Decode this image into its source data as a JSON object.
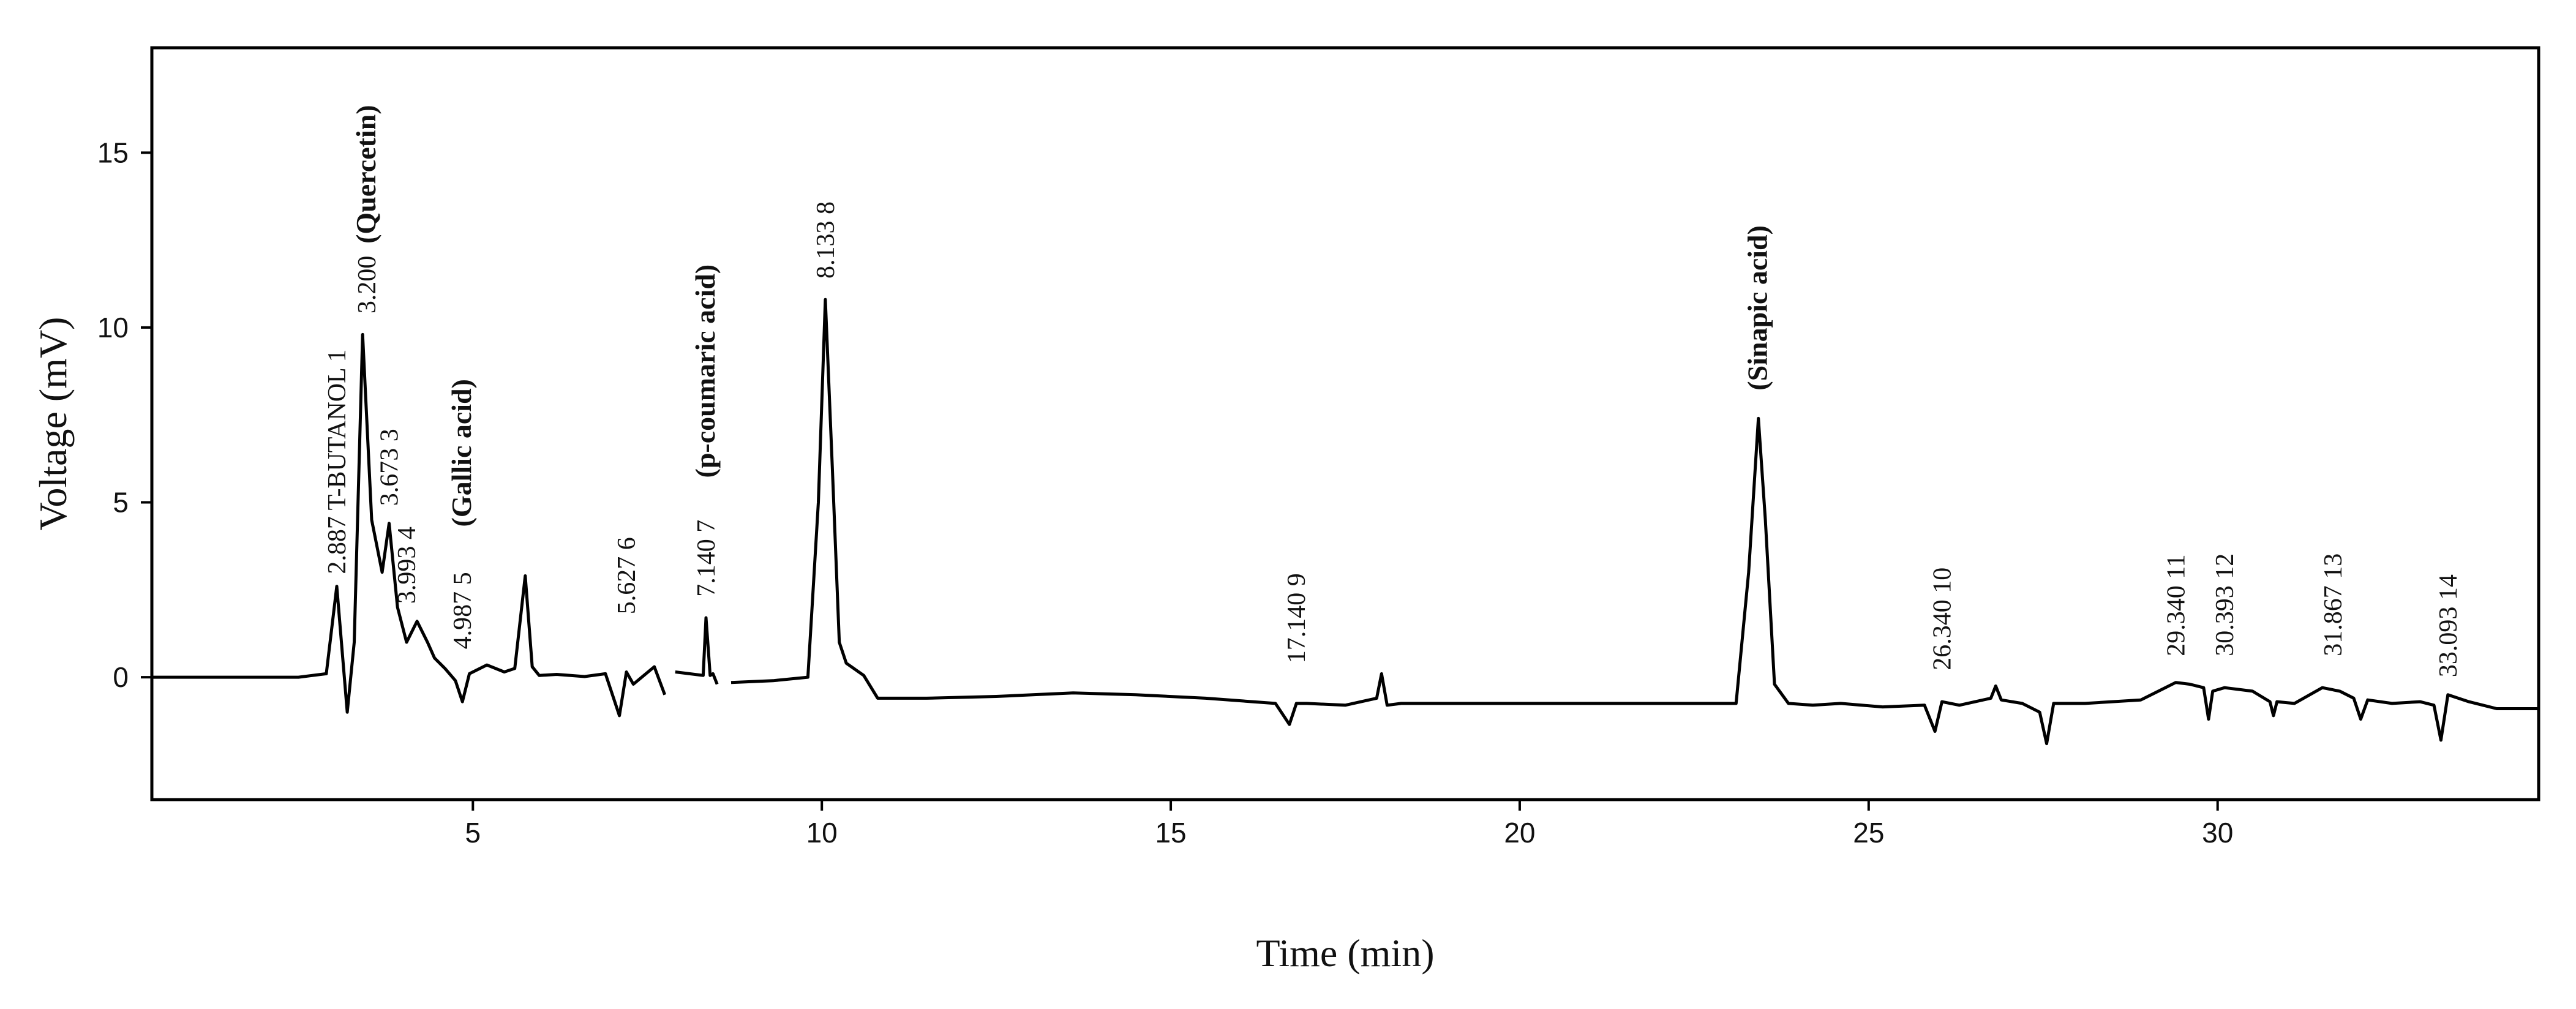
{
  "chart_data": {
    "type": "line",
    "title": "",
    "xlabel": "Time (min)",
    "ylabel": "Voltage (mV)",
    "xlim": [
      0.4,
      34.6
    ],
    "ylim": [
      -3.5,
      18
    ],
    "xticks": [
      5,
      10,
      15,
      20,
      25,
      30
    ],
    "yticks": [
      0,
      5,
      10,
      15
    ],
    "grid": false,
    "legend": "none",
    "line_color": "#000000",
    "series": [
      {
        "x": [
          0.4,
          2.5,
          2.9,
          3.05,
          3.2,
          3.3,
          3.42,
          3.55,
          3.7,
          3.8,
          3.92,
          4.05,
          4.2,
          4.35,
          4.45,
          4.6,
          4.75,
          4.85,
          4.95,
          5.2,
          5.45,
          5.6,
          5.75,
          5.85,
          5.95,
          6.2,
          6.6,
          6.9,
          7.1,
          7.2,
          7.3,
          7.42,
          7.6,
          7.75,
          7.9,
          8.3,
          8.34,
          8.4,
          8.44,
          8.5,
          8.7,
          9.3,
          9.8,
          9.95,
          10.05,
          10.15,
          10.25,
          10.35,
          10.6,
          10.8,
          11.5,
          12.5,
          13.6,
          14.5,
          15.5,
          16.5,
          16.7,
          16.8,
          16.95,
          17.5,
          17.95,
          18.02,
          18.1,
          18.3,
          19.5,
          21.0,
          22.5,
          23.1,
          23.28,
          23.42,
          23.52,
          23.65,
          23.85,
          24.2,
          24.6,
          25.2,
          25.8,
          25.95,
          26.05,
          26.3,
          26.75,
          26.82,
          26.9,
          27.2,
          27.45,
          27.55,
          27.65,
          28.1,
          28.9,
          29.2,
          29.4,
          29.6,
          29.8,
          29.87,
          29.93,
          30.1,
          30.5,
          30.75,
          30.8,
          30.85,
          31.1,
          31.5,
          31.75,
          31.95,
          32.05,
          32.15,
          32.5,
          32.9,
          33.1,
          33.2,
          33.3,
          33.6,
          34.0,
          34.6
        ],
        "y": [
          0,
          0,
          0.1,
          2.6,
          -1.0,
          1.0,
          9.8,
          4.5,
          3.0,
          4.4,
          2.0,
          1.0,
          1.6,
          1.0,
          0.55,
          0.25,
          -0.1,
          -0.7,
          0.1,
          0.35,
          0.15,
          0.25,
          2.9,
          0.3,
          0.05,
          0.08,
          0.02,
          0.1,
          -1.1,
          0.15,
          -0.2,
          0,
          0.3,
          -0.5,
          0.15,
          0.05,
          1.7,
          0.05,
          0.1,
          -0.2,
          -0.15,
          -0.1,
          0,
          5.0,
          10.8,
          6.0,
          1.0,
          0.4,
          0.05,
          -0.6,
          -0.6,
          -0.55,
          -0.45,
          -0.5,
          -0.6,
          -0.75,
          -1.35,
          -0.75,
          -0.75,
          -0.8,
          -0.6,
          0.1,
          -0.8,
          -0.75,
          -0.75,
          -0.75,
          -0.75,
          -0.75,
          3.0,
          7.4,
          4.5,
          -0.2,
          -0.75,
          -0.8,
          -0.75,
          -0.85,
          -0.8,
          -1.55,
          -0.7,
          -0.8,
          -0.6,
          -0.25,
          -0.65,
          -0.75,
          -1.0,
          -1.9,
          -0.75,
          -0.75,
          -0.65,
          -0.35,
          -0.15,
          -0.2,
          -0.3,
          -1.2,
          -0.4,
          -0.3,
          -0.4,
          -0.7,
          -1.1,
          -0.7,
          -0.75,
          -0.3,
          -0.4,
          -0.6,
          -1.2,
          -0.65,
          -0.75,
          -0.7,
          -0.8,
          -1.8,
          -0.5,
          -0.7,
          -0.9,
          -0.9
        ]
      }
    ],
    "gaps": [
      [
        7.42,
        7.55
      ],
      [
        7.75,
        7.9
      ],
      [
        8.5,
        8.7
      ]
    ],
    "annotations": [
      {
        "label": "2.887 T-BUTANOL 1",
        "x": 3.05,
        "y": 2.95,
        "bold": false
      },
      {
        "label": "3.200",
        "x": 3.48,
        "y": 10.4,
        "bold": false
      },
      {
        "label": "(Quercetin)",
        "x": 3.48,
        "y": 12.4,
        "bold": true
      },
      {
        "label": "3.673 3",
        "x": 3.8,
        "y": 4.9,
        "bold": false
      },
      {
        "label": "3.993 4",
        "x": 4.05,
        "y": 2.1,
        "bold": false
      },
      {
        "label": "4.987 5",
        "x": 4.85,
        "y": 0.8,
        "bold": false
      },
      {
        "label": "(Gallic acid)",
        "x": 4.85,
        "y": 4.3,
        "bold": true
      },
      {
        "label": "5.627 6",
        "x": 7.2,
        "y": 1.8,
        "bold": false
      },
      {
        "label": "7.140 7",
        "x": 8.34,
        "y": 2.3,
        "bold": false
      },
      {
        "label": "(p-coumaric acid)",
        "x": 8.34,
        "y": 5.7,
        "bold": true
      },
      {
        "label": "8.133 8",
        "x": 10.05,
        "y": 11.4,
        "bold": false
      },
      {
        "label": "17.140 9",
        "x": 16.8,
        "y": 0.4,
        "bold": false
      },
      {
        "label": "(Sinapic acid)",
        "x": 23.42,
        "y": 8.2,
        "bold": true
      },
      {
        "label": "26.340 10",
        "x": 26.05,
        "y": 0.2,
        "bold": false
      },
      {
        "label": "29.340 11",
        "x": 29.4,
        "y": 0.6,
        "bold": false
      },
      {
        "label": "30.393 12",
        "x": 30.1,
        "y": 0.6,
        "bold": false
      },
      {
        "label": "31.867 13",
        "x": 31.65,
        "y": 0.6,
        "bold": false
      },
      {
        "label": "33.093 14",
        "x": 33.3,
        "y": 0.0,
        "bold": false
      }
    ]
  }
}
